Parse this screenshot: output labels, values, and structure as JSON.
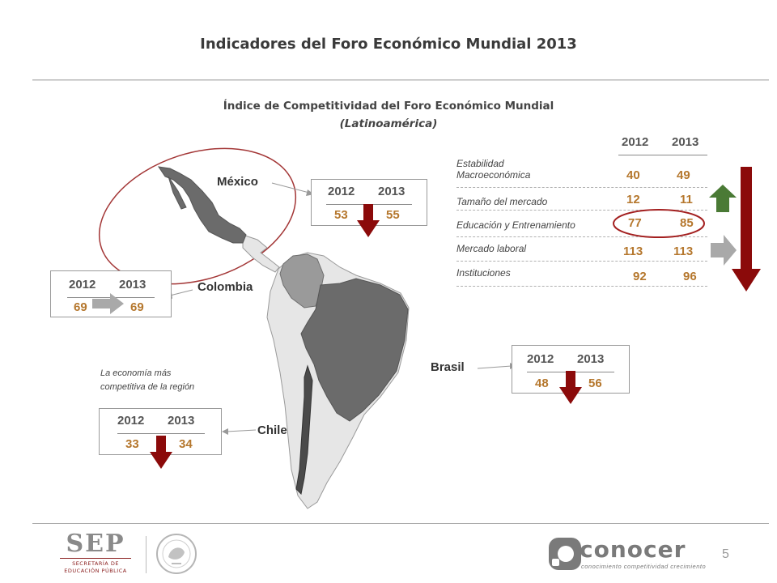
{
  "title": "Indicadores del Foro Económico Mundial 2013",
  "subtitle": {
    "line1": "Índice de Competitividad del Foro Económico Mundial",
    "line2": "(Latinoamérica)"
  },
  "countries": {
    "mexico": {
      "name": "México",
      "year1": "2012",
      "year2": "2013",
      "v1": "53",
      "v2": "55",
      "trend": "worse"
    },
    "colombia": {
      "name": "Colombia",
      "year1": "2012",
      "year2": "2013",
      "v1": "69",
      "v2": "69",
      "trend": "same"
    },
    "brasil": {
      "name": "Brasil",
      "year1": "2012",
      "year2": "2013",
      "v1": "48",
      "v2": "56",
      "trend": "worse"
    },
    "chile": {
      "name": "Chile",
      "year1": "2012",
      "year2": "2013",
      "v1": "33",
      "v2": "34",
      "trend": "worse"
    }
  },
  "chile_note": {
    "line1": "La economía más",
    "line2": "competitiva de la región"
  },
  "indicators": {
    "year1": "2012",
    "year2": "2013",
    "rows": [
      {
        "label1": "Estabilidad",
        "label2": "Macroeconómica",
        "v1": "40",
        "v2": "49"
      },
      {
        "label1": "Tamaño del mercado",
        "label2": "",
        "v1": "12",
        "v2": "11"
      },
      {
        "label1": "Educación y Entrenamiento",
        "label2": "",
        "v1": "77",
        "v2": "85"
      },
      {
        "label1": "Mercado laboral",
        "label2": "",
        "v1": "113",
        "v2": "113"
      },
      {
        "label1": "Instituciones",
        "label2": "",
        "v1": "92",
        "v2": "96"
      }
    ]
  },
  "footer": {
    "sep_logo": "SEP",
    "sep_sub1": "SECRETARÍA DE",
    "sep_sub2": "EDUCACIÓN PÚBLICA",
    "conocer_logo": "conocer",
    "tagline": "conocimiento  competitividad  crecimiento",
    "page_number": "5"
  },
  "colors": {
    "down_arrow": "#8b0a0a",
    "up_arrow": "#4a7a35",
    "flat_arrow": "#a9a9a9",
    "value": "#b5772d",
    "highlighted_country": "#6b6b6b",
    "map_other": "#e6e6e6"
  }
}
